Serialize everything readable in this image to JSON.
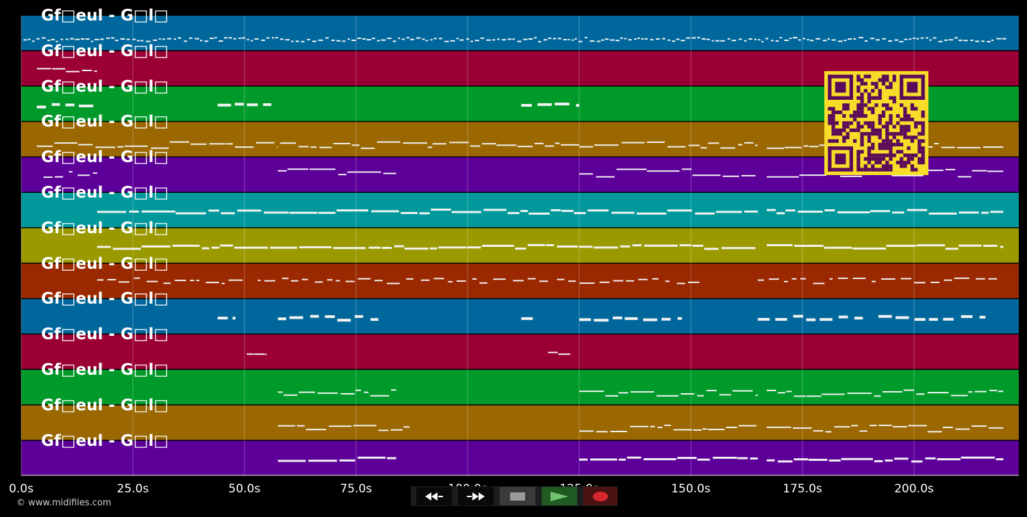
{
  "track_label": "Gf□eul - G□l□",
  "tracks": [
    {
      "color": "#00679c",
      "notes": "dense"
    },
    {
      "color": "#9a0034",
      "notes": "intro"
    },
    {
      "color": "#009a2a",
      "notes": "sparse"
    },
    {
      "color": "#9a6700",
      "notes": "melody"
    },
    {
      "color": "#5d009a",
      "notes": "chords"
    },
    {
      "color": "#00989a",
      "notes": "line"
    },
    {
      "color": "#9a9a00",
      "notes": "line"
    },
    {
      "color": "#9a2800",
      "notes": "dashes"
    },
    {
      "color": "#00679c",
      "notes": "blocks"
    },
    {
      "color": "#9a0034",
      "notes": "two"
    },
    {
      "color": "#009a2a",
      "notes": "melody"
    },
    {
      "color": "#9a6700",
      "notes": "melody"
    },
    {
      "color": "#5d009a",
      "notes": "chords"
    }
  ],
  "x_ticks": [
    "0.0s",
    "25.0s",
    "50.0s",
    "75.0s",
    "100.0s",
    "125.0s",
    "150.0s",
    "175.0s",
    "200.0s"
  ],
  "credit": "© www.midifiles.com",
  "transport": {
    "prev_icon": "rewind-icon",
    "next_icon": "fast-forward-icon",
    "stop_icon": "stop-icon",
    "play_icon": "play-icon",
    "record_icon": "record-icon"
  },
  "overlay": {
    "qr": "qr-code-icon",
    "qr_color": "#f7dc2a",
    "qr_dark": "#5a0a5a"
  }
}
